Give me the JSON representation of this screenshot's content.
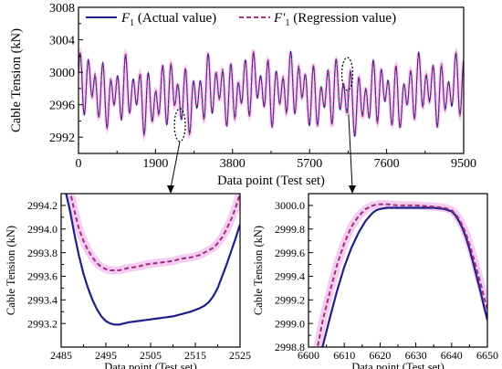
{
  "colors": {
    "actual": "#1f1f8a",
    "regression": "#a0307a",
    "band": "#f2bff0",
    "axis": "#000000"
  },
  "chart_data": [
    {
      "id": "main",
      "type": "line",
      "xlabel": "Data point (Test set)",
      "ylabel": "Cable Tension (kN)",
      "xlim": [
        0,
        9500
      ],
      "ylim": [
        2990,
        3008
      ],
      "xticks": [
        "0",
        "1900",
        "3800",
        "5700",
        "7600",
        "9500"
      ],
      "yticks": [
        "2992",
        "2996",
        "3000",
        "3004",
        "3008"
      ],
      "legend_position": "top",
      "legend": [
        {
          "prefix": "F",
          "sub": "1",
          "text": "(Actual value)",
          "style": "solid"
        },
        {
          "prefix": "F′",
          "sub": "1",
          "text": "(Regression value)",
          "style": "dashed"
        }
      ],
      "series": [
        {
          "name": "F1 (Actual value)",
          "approx_range": [
            2991.5,
            3003
          ]
        },
        {
          "name": "F′1 (Regression value)",
          "approx_range": [
            2991.5,
            3003
          ]
        }
      ],
      "zoom_regions": [
        {
          "x": 2500,
          "y": 2993.5,
          "target": "left"
        },
        {
          "x": 6630,
          "y": 2999.8,
          "target": "right"
        }
      ]
    },
    {
      "id": "zoom_left",
      "type": "line",
      "xlabel": "Data point (Test set)",
      "ylabel": "Cable Tension (kN)",
      "xlim": [
        2485,
        2525
      ],
      "ylim": [
        2993.0,
        2994.3
      ],
      "xticks": [
        "2485",
        "2495",
        "2505",
        "2515",
        "2525"
      ],
      "yticks": [
        "2993.2",
        "2993.4",
        "2993.6",
        "2993.8",
        "2994.0",
        "2994.2"
      ],
      "series": [
        {
          "name": "F1 (Actual value)",
          "x": [
            2485.5,
            2487,
            2488,
            2489,
            2490,
            2491,
            2492,
            2493,
            2494,
            2495,
            2496,
            2497,
            2498,
            2499,
            2500,
            2502,
            2504,
            2506,
            2508,
            2510,
            2512,
            2514,
            2516,
            2517,
            2518,
            2519,
            2520,
            2521,
            2522,
            2523,
            2524,
            2525
          ],
          "y": [
            2994.4,
            2994.15,
            2993.95,
            2993.77,
            2993.62,
            2993.5,
            2993.4,
            2993.32,
            2993.26,
            2993.22,
            2993.2,
            2993.19,
            2993.19,
            2993.2,
            2993.21,
            2993.22,
            2993.23,
            2993.24,
            2993.25,
            2993.26,
            2993.28,
            2993.3,
            2993.33,
            2993.35,
            2993.38,
            2993.43,
            2993.5,
            2993.6,
            2993.7,
            2993.81,
            2993.92,
            2994.04
          ]
        },
        {
          "name": "F′1 (Regression value)",
          "x": [
            2486.5,
            2488,
            2489,
            2490,
            2491,
            2492,
            2493,
            2494,
            2495,
            2496,
            2497,
            2498,
            2500,
            2502,
            2504,
            2506,
            2508,
            2510,
            2512,
            2514,
            2515,
            2516,
            2517,
            2518,
            2519,
            2520,
            2521,
            2522,
            2523,
            2524,
            2525
          ],
          "y": [
            2994.4,
            2994.15,
            2994.0,
            2993.9,
            2993.82,
            2993.76,
            2993.71,
            2993.68,
            2993.66,
            2993.65,
            2993.65,
            2993.65,
            2993.67,
            2993.68,
            2993.7,
            2993.71,
            2993.72,
            2993.73,
            2993.75,
            2993.76,
            2993.77,
            2993.78,
            2993.8,
            2993.82,
            2993.84,
            2993.88,
            2993.93,
            2994.0,
            2994.08,
            2994.18,
            2994.3
          ]
        }
      ]
    },
    {
      "id": "zoom_right",
      "type": "line",
      "xlabel": "Data point (Test set)",
      "ylabel": "Cable Tension (kN)",
      "xlim": [
        6600,
        6650
      ],
      "ylim": [
        2998.8,
        3000.1
      ],
      "xticks": [
        "6600",
        "6610",
        "6620",
        "6630",
        "6640",
        "6650"
      ],
      "yticks": [
        "2998.8",
        "2999.0",
        "2999.2",
        "2999.4",
        "2999.6",
        "2999.8",
        "3000.0"
      ],
      "series": [
        {
          "name": "F1 (Actual value)",
          "x": [
            6603.5,
            6606,
            6608,
            6610,
            6612,
            6614,
            6616,
            6618,
            6619,
            6620,
            6622,
            6625,
            6630,
            6635,
            6638,
            6640,
            6641,
            6642,
            6643,
            6644,
            6645,
            6646,
            6647,
            6648,
            6649,
            6650
          ],
          "y": [
            2998.75,
            2999.05,
            2999.28,
            2999.48,
            2999.64,
            2999.77,
            2999.87,
            2999.94,
            2999.96,
            2999.97,
            2999.98,
            2999.98,
            2999.98,
            2999.98,
            2999.97,
            2999.95,
            2999.92,
            2999.87,
            2999.81,
            2999.73,
            2999.63,
            2999.52,
            2999.4,
            2999.28,
            2999.15,
            2999.03
          ]
        },
        {
          "name": "F′1 (Regression value)",
          "x": [
            6602.2,
            6604,
            6606,
            6608,
            6610,
            6612,
            6614,
            6616,
            6618,
            6620,
            6622,
            6625,
            6630,
            6635,
            6638,
            6640,
            6641,
            6642,
            6643,
            6644,
            6645,
            6646,
            6647,
            6648,
            6649,
            6650
          ],
          "y": [
            2998.75,
            2999.03,
            2999.27,
            2999.5,
            2999.68,
            2999.82,
            2999.91,
            2999.97,
            3000.0,
            3000.01,
            3000.01,
            3000.0,
            3000.0,
            2999.99,
            2999.98,
            2999.96,
            2999.93,
            2999.89,
            2999.83,
            2999.76,
            2999.67,
            2999.57,
            2999.46,
            2999.35,
            2999.23,
            2999.12
          ]
        }
      ]
    }
  ]
}
